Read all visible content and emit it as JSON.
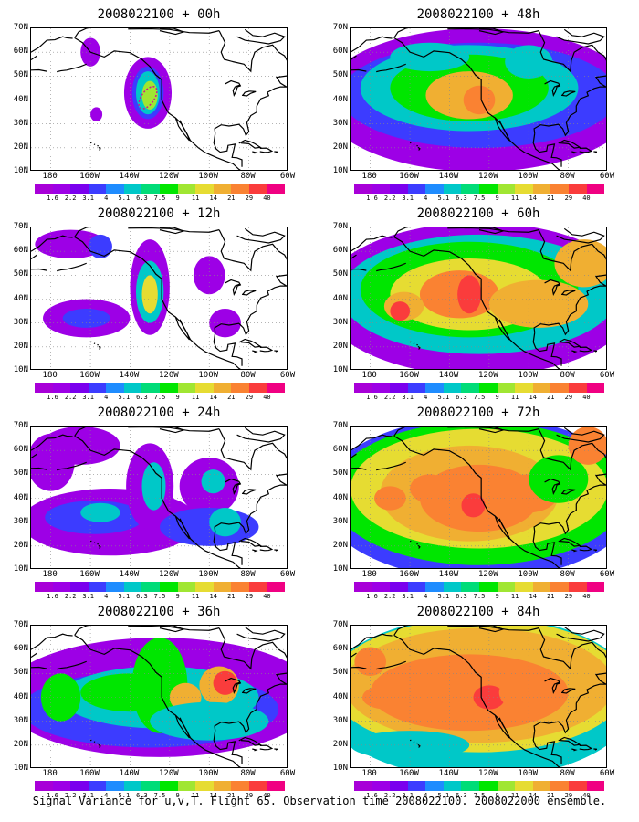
{
  "figure": {
    "caption": "Signal Variance for u,v,T. Flight 65. Observation time 2008022100. 2008022000 ensemble.",
    "latitude_labels": [
      "70N",
      "60N",
      "50N",
      "40N",
      "30N",
      "20N",
      "10N"
    ],
    "longitude_labels": [
      "180",
      "160W",
      "140W",
      "120W",
      "100W",
      "80W",
      "60W"
    ],
    "colorbar": {
      "labels": [
        "1.6",
        "2.2",
        "3.1",
        "4",
        "5.1",
        "6.3",
        "7.5",
        "9",
        "11",
        "14",
        "21",
        "29",
        "40"
      ],
      "colors": [
        "#9d00e6",
        "#7a00ee",
        "#3c3cff",
        "#1e8cff",
        "#00c8c8",
        "#00dc78",
        "#00e600",
        "#a0e632",
        "#e6dc32",
        "#f0af32",
        "#fa8232",
        "#fa3c3c",
        "#f00082"
      ]
    },
    "track_color": "#d01890",
    "panels": [
      {
        "title": "2008022100 + 00h",
        "level": 0
      },
      {
        "title": "2008022100 + 48h",
        "level": 4
      },
      {
        "title": "2008022100 + 12h",
        "level": 1
      },
      {
        "title": "2008022100 + 60h",
        "level": 5
      },
      {
        "title": "2008022100 + 24h",
        "level": 2
      },
      {
        "title": "2008022100 + 72h",
        "level": 6
      },
      {
        "title": "2008022100 + 36h",
        "level": 3
      },
      {
        "title": "2008022100 + 84h",
        "level": 7
      }
    ]
  }
}
